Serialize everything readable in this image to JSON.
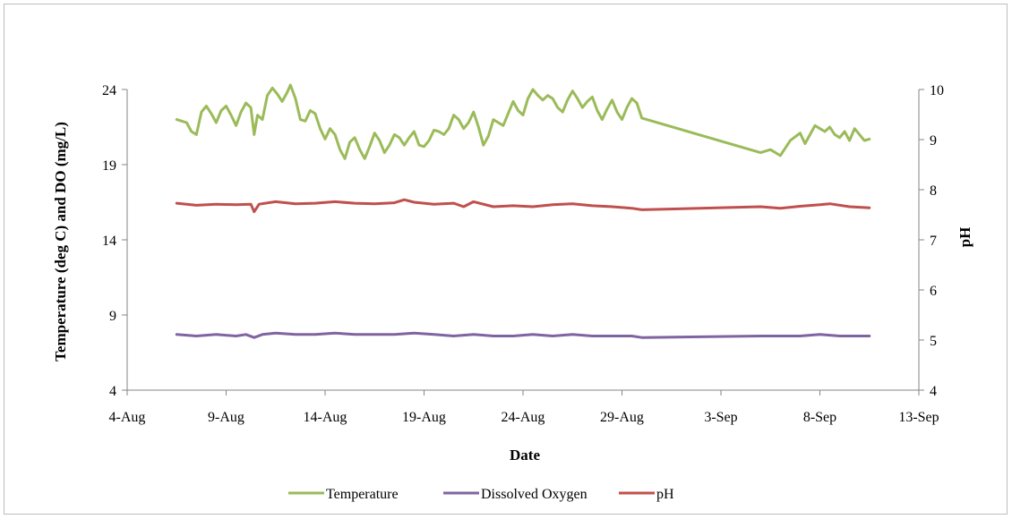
{
  "chart_data": {
    "type": "line",
    "xlabel": "Date",
    "ylabel_left": "Temperature (deg C) and DO (mg/L)",
    "ylabel_right": "pH",
    "x_ticks": [
      "4-Aug",
      "9-Aug",
      "14-Aug",
      "19-Aug",
      "24-Aug",
      "29-Aug",
      "3-Sep",
      "8-Sep",
      "13-Sep"
    ],
    "x_range": [
      "2013-08-04",
      "2013-09-13"
    ],
    "ylim_left": [
      4,
      24
    ],
    "y_ticks_left": [
      4,
      9,
      14,
      19,
      24
    ],
    "ylim_right": [
      4,
      10
    ],
    "y_ticks_right": [
      4,
      5,
      6,
      7,
      8,
      9,
      10
    ],
    "legend_position": "bottom",
    "grid": false,
    "series": [
      {
        "name": "Temperature",
        "axis": "left",
        "color": "#9bbb59",
        "points": [
          [
            "2013-08-06T12:00",
            22.0
          ],
          [
            "2013-08-07T00:00",
            21.8
          ],
          [
            "2013-08-07T06:00",
            21.2
          ],
          [
            "2013-08-07T12:00",
            21.0
          ],
          [
            "2013-08-07T18:00",
            22.5
          ],
          [
            "2013-08-08T00:00",
            22.9
          ],
          [
            "2013-08-08T06:00",
            22.4
          ],
          [
            "2013-08-08T12:00",
            21.8
          ],
          [
            "2013-08-08T18:00",
            22.6
          ],
          [
            "2013-08-09T00:00",
            22.9
          ],
          [
            "2013-08-09T06:00",
            22.3
          ],
          [
            "2013-08-09T12:00",
            21.6
          ],
          [
            "2013-08-09T18:00",
            22.5
          ],
          [
            "2013-08-10T00:00",
            23.1
          ],
          [
            "2013-08-10T06:00",
            22.8
          ],
          [
            "2013-08-10T10:00",
            21.0
          ],
          [
            "2013-08-10T14:00",
            22.3
          ],
          [
            "2013-08-10T20:00",
            22.0
          ],
          [
            "2013-08-11T02:00",
            23.6
          ],
          [
            "2013-08-11T08:00",
            24.1
          ],
          [
            "2013-08-11T14:00",
            23.7
          ],
          [
            "2013-08-11T20:00",
            23.2
          ],
          [
            "2013-08-12T02:00",
            23.8
          ],
          [
            "2013-08-12T06:00",
            24.3
          ],
          [
            "2013-08-12T12:00",
            23.4
          ],
          [
            "2013-08-12T18:00",
            22.0
          ],
          [
            "2013-08-13T00:00",
            21.9
          ],
          [
            "2013-08-13T06:00",
            22.6
          ],
          [
            "2013-08-13T12:00",
            22.4
          ],
          [
            "2013-08-13T18:00",
            21.4
          ],
          [
            "2013-08-14T00:00",
            20.7
          ],
          [
            "2013-08-14T06:00",
            21.4
          ],
          [
            "2013-08-14T12:00",
            21.0
          ],
          [
            "2013-08-14T18:00",
            20.0
          ],
          [
            "2013-08-15T00:00",
            19.4
          ],
          [
            "2013-08-15T06:00",
            20.5
          ],
          [
            "2013-08-15T12:00",
            20.8
          ],
          [
            "2013-08-15T18:00",
            20.0
          ],
          [
            "2013-08-16T00:00",
            19.4
          ],
          [
            "2013-08-16T06:00",
            20.2
          ],
          [
            "2013-08-16T12:00",
            21.1
          ],
          [
            "2013-08-16T18:00",
            20.6
          ],
          [
            "2013-08-17T00:00",
            19.8
          ],
          [
            "2013-08-17T06:00",
            20.3
          ],
          [
            "2013-08-17T12:00",
            21.0
          ],
          [
            "2013-08-17T18:00",
            20.8
          ],
          [
            "2013-08-18T00:00",
            20.3
          ],
          [
            "2013-08-18T06:00",
            20.8
          ],
          [
            "2013-08-18T12:00",
            21.2
          ],
          [
            "2013-08-18T18:00",
            20.3
          ],
          [
            "2013-08-19T00:00",
            20.2
          ],
          [
            "2013-08-19T06:00",
            20.6
          ],
          [
            "2013-08-19T12:00",
            21.3
          ],
          [
            "2013-08-19T18:00",
            21.2
          ],
          [
            "2013-08-20T00:00",
            21.0
          ],
          [
            "2013-08-20T06:00",
            21.4
          ],
          [
            "2013-08-20T12:00",
            22.3
          ],
          [
            "2013-08-20T18:00",
            22.0
          ],
          [
            "2013-08-21T00:00",
            21.4
          ],
          [
            "2013-08-21T06:00",
            21.8
          ],
          [
            "2013-08-21T12:00",
            22.5
          ],
          [
            "2013-08-21T18:00",
            21.5
          ],
          [
            "2013-08-22T00:00",
            20.3
          ],
          [
            "2013-08-22T06:00",
            20.9
          ],
          [
            "2013-08-22T12:00",
            22.0
          ],
          [
            "2013-08-22T18:00",
            21.8
          ],
          [
            "2013-08-23T00:00",
            21.6
          ],
          [
            "2013-08-23T06:00",
            22.4
          ],
          [
            "2013-08-23T12:00",
            23.2
          ],
          [
            "2013-08-23T18:00",
            22.6
          ],
          [
            "2013-08-24T00:00",
            22.3
          ],
          [
            "2013-08-24T06:00",
            23.4
          ],
          [
            "2013-08-24T12:00",
            24.0
          ],
          [
            "2013-08-24T18:00",
            23.6
          ],
          [
            "2013-08-25T00:00",
            23.3
          ],
          [
            "2013-08-25T06:00",
            23.6
          ],
          [
            "2013-08-25T12:00",
            23.4
          ],
          [
            "2013-08-25T18:00",
            22.8
          ],
          [
            "2013-08-26T00:00",
            22.5
          ],
          [
            "2013-08-26T06:00",
            23.3
          ],
          [
            "2013-08-26T12:00",
            23.9
          ],
          [
            "2013-08-26T18:00",
            23.4
          ],
          [
            "2013-08-27T00:00",
            22.8
          ],
          [
            "2013-08-27T06:00",
            23.2
          ],
          [
            "2013-08-27T12:00",
            23.5
          ],
          [
            "2013-08-27T18:00",
            22.6
          ],
          [
            "2013-08-28T00:00",
            22.0
          ],
          [
            "2013-08-28T06:00",
            22.7
          ],
          [
            "2013-08-28T12:00",
            23.3
          ],
          [
            "2013-08-28T18:00",
            22.5
          ],
          [
            "2013-08-29T00:00",
            22.0
          ],
          [
            "2013-08-29T06:00",
            22.8
          ],
          [
            "2013-08-29T12:00",
            23.4
          ],
          [
            "2013-08-29T18:00",
            23.1
          ],
          [
            "2013-08-30T00:00",
            22.1
          ],
          [
            "2013-09-05T00:00",
            19.8
          ],
          [
            "2013-09-05T12:00",
            20.0
          ],
          [
            "2013-09-06T00:00",
            19.6
          ],
          [
            "2013-09-06T12:00",
            20.6
          ],
          [
            "2013-09-07T00:00",
            21.1
          ],
          [
            "2013-09-07T06:00",
            20.4
          ],
          [
            "2013-09-07T12:00",
            21.0
          ],
          [
            "2013-09-07T18:00",
            21.6
          ],
          [
            "2013-09-08T00:00",
            21.4
          ],
          [
            "2013-09-08T06:00",
            21.2
          ],
          [
            "2013-09-08T12:00",
            21.5
          ],
          [
            "2013-09-08T18:00",
            21.0
          ],
          [
            "2013-09-09T00:00",
            20.8
          ],
          [
            "2013-09-09T06:00",
            21.2
          ],
          [
            "2013-09-09T12:00",
            20.6
          ],
          [
            "2013-09-09T18:00",
            21.4
          ],
          [
            "2013-09-10T06:00",
            20.6
          ],
          [
            "2013-09-10T12:00",
            20.7
          ]
        ]
      },
      {
        "name": "Dissolved Oxygen",
        "axis": "left",
        "color": "#8064a2",
        "points": [
          [
            "2013-08-06T12:00",
            7.7
          ],
          [
            "2013-08-07T12:00",
            7.6
          ],
          [
            "2013-08-08T12:00",
            7.7
          ],
          [
            "2013-08-09T12:00",
            7.6
          ],
          [
            "2013-08-10T00:00",
            7.7
          ],
          [
            "2013-08-10T10:00",
            7.5
          ],
          [
            "2013-08-10T20:00",
            7.7
          ],
          [
            "2013-08-11T12:00",
            7.8
          ],
          [
            "2013-08-12T12:00",
            7.7
          ],
          [
            "2013-08-13T12:00",
            7.7
          ],
          [
            "2013-08-14T12:00",
            7.8
          ],
          [
            "2013-08-15T12:00",
            7.7
          ],
          [
            "2013-08-16T12:00",
            7.7
          ],
          [
            "2013-08-17T12:00",
            7.7
          ],
          [
            "2013-08-18T12:00",
            7.8
          ],
          [
            "2013-08-19T12:00",
            7.7
          ],
          [
            "2013-08-20T12:00",
            7.6
          ],
          [
            "2013-08-21T12:00",
            7.7
          ],
          [
            "2013-08-22T12:00",
            7.6
          ],
          [
            "2013-08-23T12:00",
            7.6
          ],
          [
            "2013-08-24T12:00",
            7.7
          ],
          [
            "2013-08-25T12:00",
            7.6
          ],
          [
            "2013-08-26T12:00",
            7.7
          ],
          [
            "2013-08-27T12:00",
            7.6
          ],
          [
            "2013-08-28T12:00",
            7.6
          ],
          [
            "2013-08-29T12:00",
            7.6
          ],
          [
            "2013-08-30T00:00",
            7.5
          ],
          [
            "2013-09-05T00:00",
            7.6
          ],
          [
            "2013-09-06T00:00",
            7.6
          ],
          [
            "2013-09-07T00:00",
            7.6
          ],
          [
            "2013-09-08T00:00",
            7.7
          ],
          [
            "2013-09-09T00:00",
            7.6
          ],
          [
            "2013-09-10T12:00",
            7.6
          ]
        ]
      },
      {
        "name": "pH",
        "axis": "right",
        "color": "#c0504d",
        "points": [
          [
            "2013-08-06T12:00",
            7.73
          ],
          [
            "2013-08-07T12:00",
            7.69
          ],
          [
            "2013-08-08T12:00",
            7.71
          ],
          [
            "2013-08-09T12:00",
            7.7
          ],
          [
            "2013-08-10T06:00",
            7.71
          ],
          [
            "2013-08-10T10:00",
            7.56
          ],
          [
            "2013-08-10T16:00",
            7.71
          ],
          [
            "2013-08-11T12:00",
            7.76
          ],
          [
            "2013-08-12T12:00",
            7.72
          ],
          [
            "2013-08-13T12:00",
            7.73
          ],
          [
            "2013-08-14T12:00",
            7.76
          ],
          [
            "2013-08-15T12:00",
            7.73
          ],
          [
            "2013-08-16T12:00",
            7.72
          ],
          [
            "2013-08-17T12:00",
            7.74
          ],
          [
            "2013-08-18T00:00",
            7.8
          ],
          [
            "2013-08-18T12:00",
            7.75
          ],
          [
            "2013-08-19T12:00",
            7.71
          ],
          [
            "2013-08-20T12:00",
            7.73
          ],
          [
            "2013-08-21T00:00",
            7.66
          ],
          [
            "2013-08-21T12:00",
            7.76
          ],
          [
            "2013-08-22T12:00",
            7.66
          ],
          [
            "2013-08-23T12:00",
            7.68
          ],
          [
            "2013-08-24T12:00",
            7.66
          ],
          [
            "2013-08-25T12:00",
            7.7
          ],
          [
            "2013-08-26T12:00",
            7.72
          ],
          [
            "2013-08-27T12:00",
            7.68
          ],
          [
            "2013-08-28T12:00",
            7.66
          ],
          [
            "2013-08-29T12:00",
            7.63
          ],
          [
            "2013-08-30T00:00",
            7.6
          ],
          [
            "2013-09-05T00:00",
            7.66
          ],
          [
            "2013-09-06T00:00",
            7.63
          ],
          [
            "2013-09-07T00:00",
            7.67
          ],
          [
            "2013-09-08T00:00",
            7.7
          ],
          [
            "2013-09-08T12:00",
            7.72
          ],
          [
            "2013-09-09T12:00",
            7.66
          ],
          [
            "2013-09-10T12:00",
            7.64
          ]
        ]
      }
    ]
  }
}
